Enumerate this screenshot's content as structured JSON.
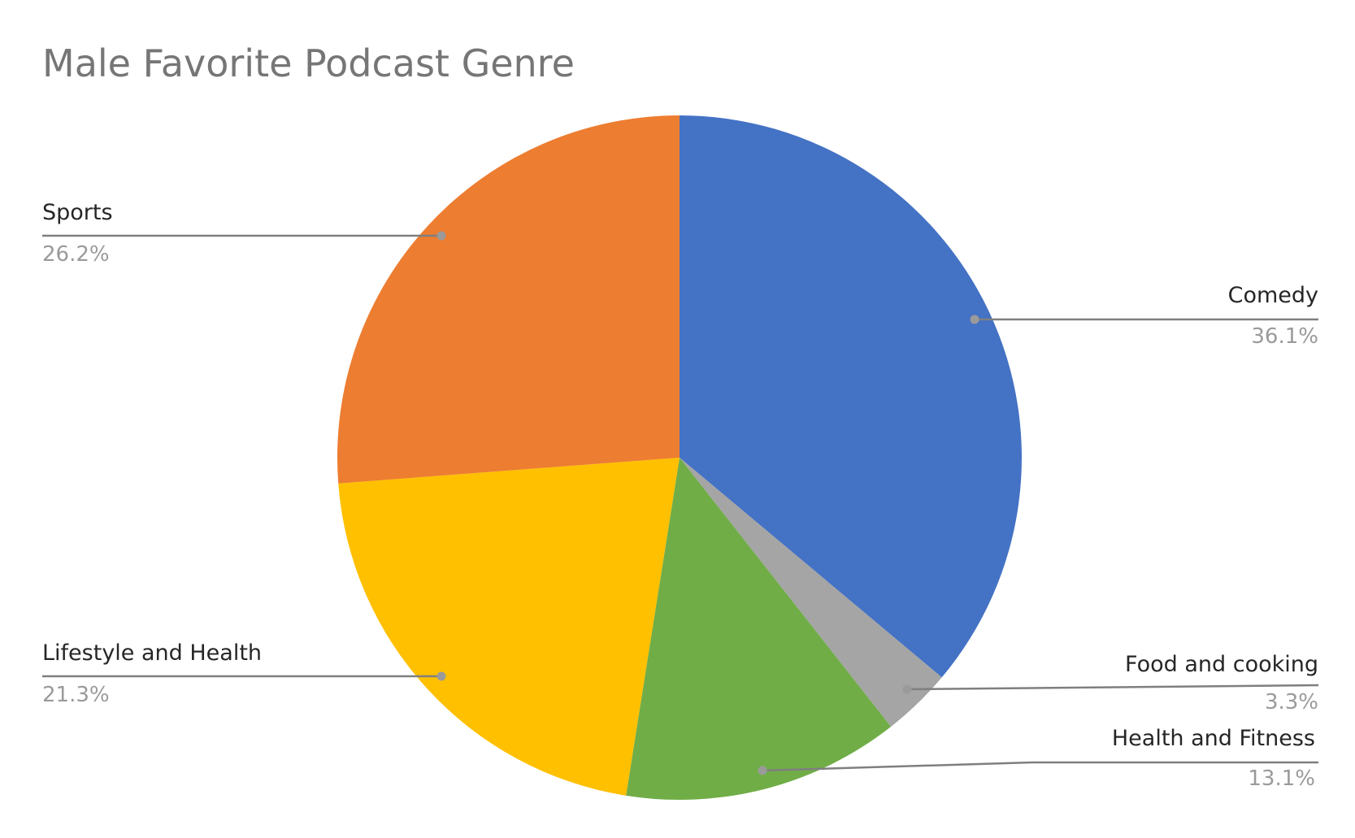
{
  "chart_data": {
    "type": "pie",
    "title": "Male Favorite Podcast Genre",
    "start_angle_deg": 0,
    "direction": "clockwise",
    "slices": [
      {
        "name": "Comedy",
        "value": 36.1,
        "label": "36.1%",
        "color": "#4472C4"
      },
      {
        "name": "Food and cooking",
        "value": 3.3,
        "label": "3.3%",
        "color": "#A5A5A5"
      },
      {
        "name": "Health and Fitness",
        "value": 13.1,
        "label": "13.1%",
        "color": "#70AD47"
      },
      {
        "name": "Lifestyle and Health",
        "value": 21.3,
        "label": "21.3%",
        "color": "#FFC000"
      },
      {
        "name": "Sports",
        "value": 26.2,
        "label": "26.2%",
        "color": "#ED7D31"
      }
    ]
  }
}
